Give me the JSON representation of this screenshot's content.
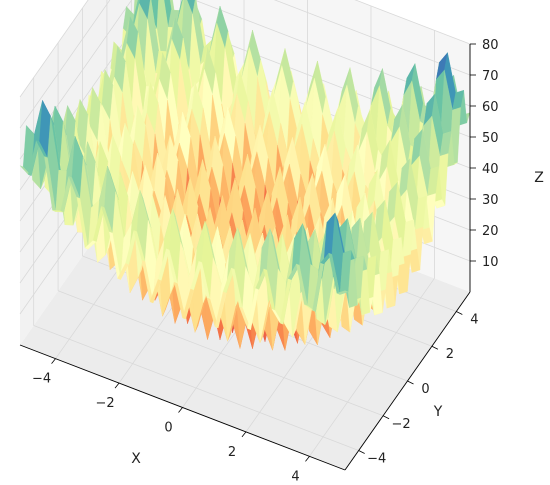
{
  "chart_data": {
    "type": "surface3d",
    "title": "",
    "xlabel": "X",
    "ylabel": "Y",
    "zlabel": "Z",
    "x_ticks": [
      "−4",
      "−2",
      "0",
      "2",
      "4"
    ],
    "y_ticks": [
      "−4",
      "−2",
      "0",
      "2",
      "4"
    ],
    "z_ticks": [
      "10",
      "20",
      "30",
      "40",
      "50",
      "60",
      "70",
      "80"
    ],
    "xlim": [
      -5.12,
      5.12
    ],
    "ylim": [
      -5.12,
      5.12
    ],
    "zlim": [
      0,
      80
    ],
    "function": "Rastrigin: Z = 20 + X^2 - 10cos(2πX) + Y^2 - 10cos(2πY)",
    "grid": true,
    "colormap": "Spectral",
    "colormap_stops": [
      "#9e0142",
      "#d53e4f",
      "#f46d43",
      "#fdae61",
      "#fee08b",
      "#ffffbf",
      "#e6f598",
      "#abdda4",
      "#66c2a5",
      "#3288bd",
      "#5e4fa2"
    ]
  }
}
